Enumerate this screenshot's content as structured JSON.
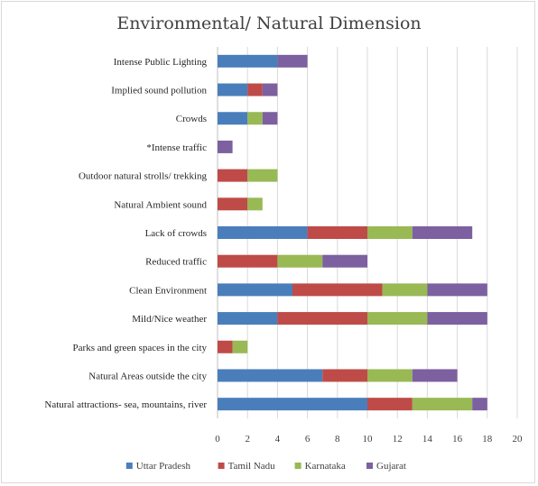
{
  "chart_data": {
    "type": "bar",
    "orientation": "horizontal",
    "stacked": true,
    "title": "Environmental/ Natural Dimension",
    "xlabel": "",
    "ylabel": "",
    "xlim": [
      0,
      20
    ],
    "xticks": [
      0,
      2,
      4,
      6,
      8,
      10,
      12,
      14,
      16,
      18,
      20
    ],
    "grid": "vertical",
    "legend_position": "bottom",
    "categories": [
      "Intense Public Lighting",
      "Implied sound pollution",
      "Crowds",
      "*Intense traffic",
      "Outdoor natural strolls/ trekking",
      "Natural Ambient sound",
      "Lack of crowds",
      "Reduced traffic",
      "Clean Environment",
      "Mild/Nice weather",
      "Parks and green spaces in the city",
      "Natural Areas outside the city",
      "Natural attractions- sea, mountains, river"
    ],
    "series": [
      {
        "name": "Uttar Pradesh",
        "color": "#4a7ebb",
        "values": [
          4,
          2,
          2,
          0,
          0,
          0,
          6,
          0,
          5,
          4,
          0,
          7,
          10
        ]
      },
      {
        "name": "Tamil Nadu",
        "color": "#be4b48",
        "values": [
          0,
          1,
          0,
          0,
          2,
          2,
          4,
          4,
          6,
          6,
          1,
          3,
          3
        ]
      },
      {
        "name": "Karnataka",
        "color": "#98b954",
        "values": [
          0,
          0,
          1,
          0,
          2,
          1,
          3,
          3,
          3,
          4,
          1,
          3,
          4
        ]
      },
      {
        "name": "Gujarat",
        "color": "#7d60a0",
        "values": [
          2,
          1,
          1,
          1,
          0,
          0,
          4,
          3,
          4,
          4,
          0,
          3,
          1
        ]
      }
    ]
  }
}
